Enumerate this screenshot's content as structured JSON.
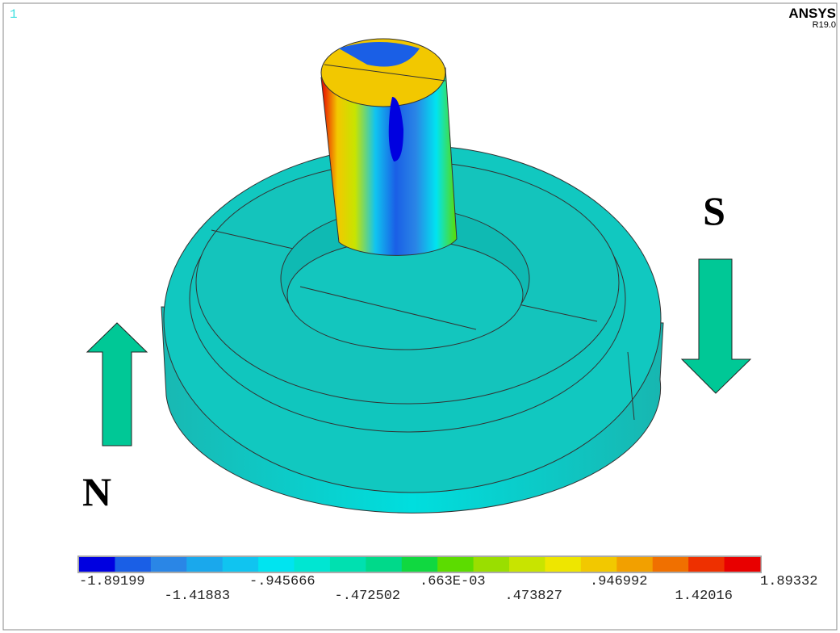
{
  "viewport": {
    "number": "1"
  },
  "logo": {
    "title": "ANSYS",
    "version": "R19.0"
  },
  "annotations": {
    "south": "S",
    "north": "N"
  },
  "legend": {
    "colors": [
      "#0000e0",
      "#1a5fe6",
      "#2a86e6",
      "#1aa8ec",
      "#10c4f0",
      "#00e4f0",
      "#00e6d2",
      "#00e0b0",
      "#00d98a",
      "#10d840",
      "#5cdc00",
      "#9ade00",
      "#c8e400",
      "#eee600",
      "#f2c800",
      "#f2a000",
      "#f07000",
      "#ee3000",
      "#e80000"
    ],
    "labels": [
      "-1.89199",
      "-1.41883",
      "-.945666",
      "-.472502",
      ".663E-03",
      ".473827",
      ".946992",
      "1.42016",
      "1.89332"
    ]
  }
}
